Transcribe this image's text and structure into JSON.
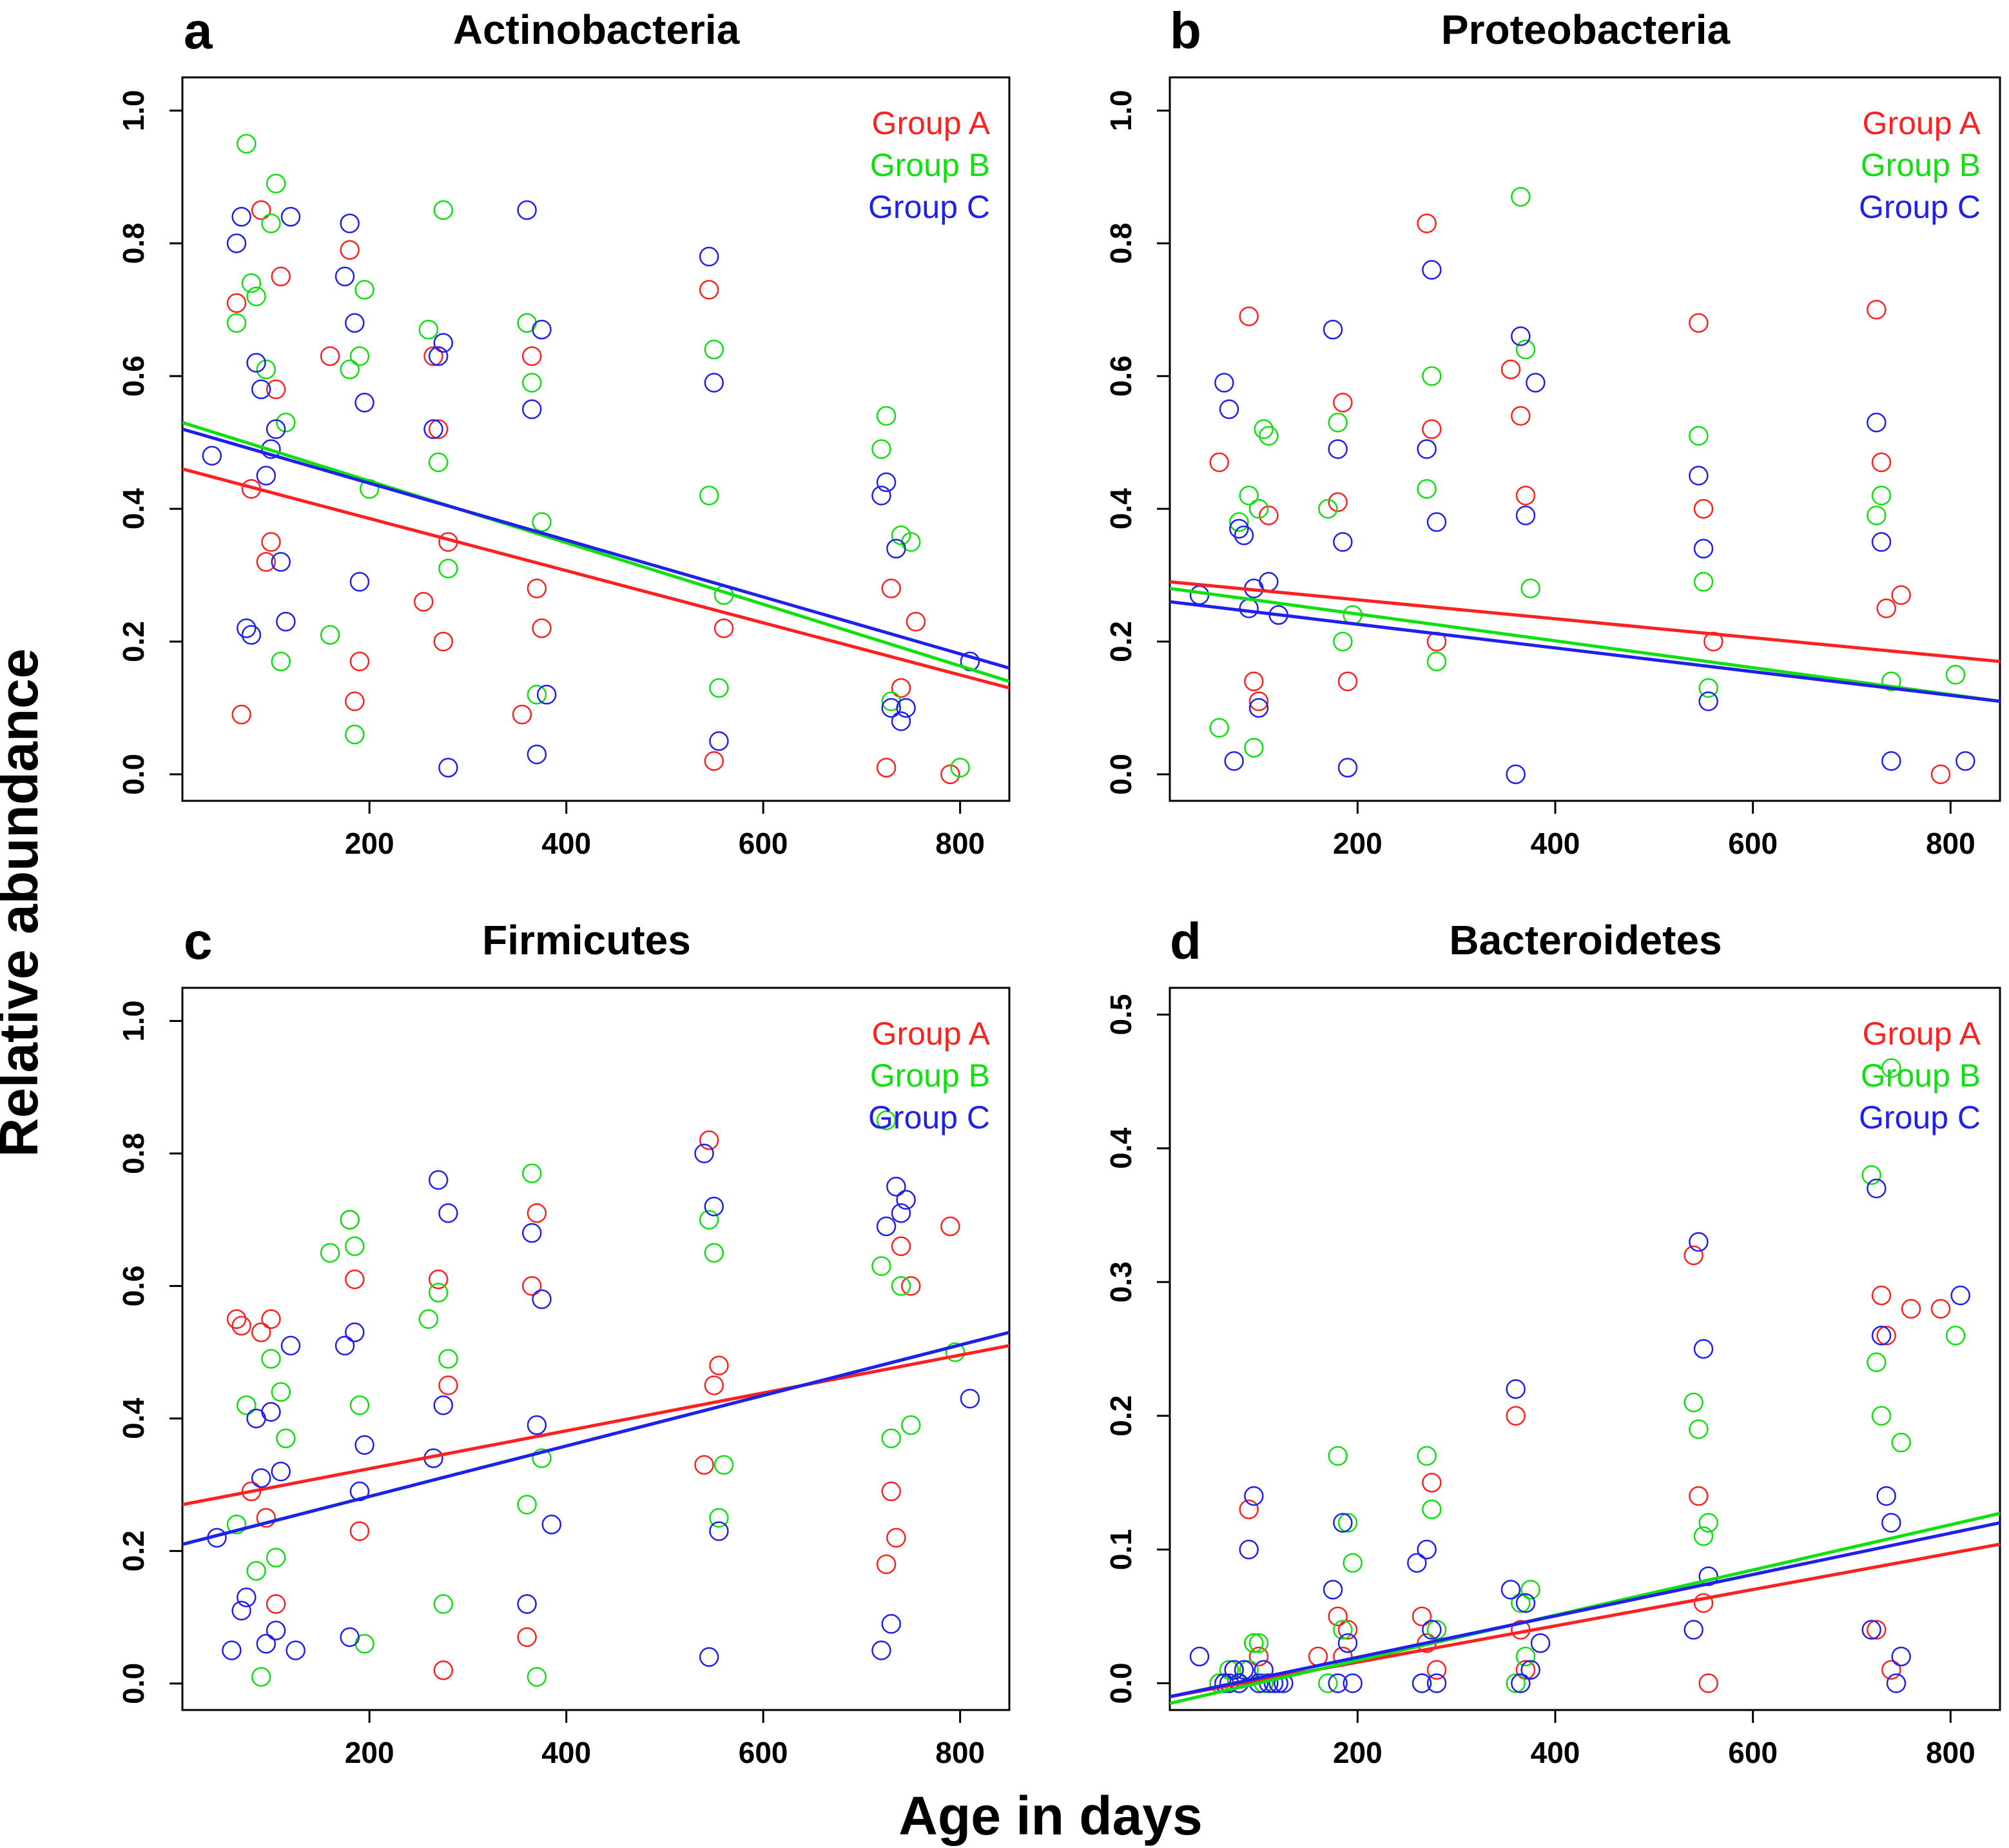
{
  "figure": {
    "ylabel": "Relative abundance",
    "xlabel": "Age in days"
  },
  "colors": {
    "group_a": "#ff2020",
    "group_b": "#10e010",
    "group_c": "#2020ee"
  },
  "chart_data": [
    {
      "type": "scatter",
      "panel": "a",
      "title": "Actinobacteria",
      "legend": [
        "Group A",
        "Group B",
        "Group C"
      ],
      "legend_position": "top-right",
      "xlim": [
        10,
        850
      ],
      "ylim": [
        -0.04,
        1.05
      ],
      "xticks": [
        200,
        400,
        600,
        800
      ],
      "yticks": [
        0.0,
        0.2,
        0.4,
        0.6,
        0.8,
        1.0
      ],
      "fits": [
        {
          "name": "Group A",
          "y_at_10": 0.46,
          "y_at_850": 0.13
        },
        {
          "name": "Group B",
          "y_at_10": 0.53,
          "y_at_850": 0.14
        },
        {
          "name": "Group C",
          "y_at_10": 0.52,
          "y_at_850": 0.16
        }
      ],
      "series": [
        {
          "name": "Group A",
          "x": [
            65,
            70,
            80,
            90,
            95,
            100,
            105,
            110,
            160,
            180,
            185,
            190,
            255,
            265,
            270,
            275,
            280,
            355,
            365,
            370,
            375,
            545,
            550,
            560,
            725,
            730,
            740,
            755,
            790
          ],
          "y": [
            0.71,
            0.09,
            0.43,
            0.85,
            0.32,
            0.35,
            0.58,
            0.75,
            0.63,
            0.79,
            0.11,
            0.17,
            0.26,
            0.63,
            0.52,
            0.2,
            0.35,
            0.09,
            0.63,
            0.28,
            0.22,
            0.73,
            0.02,
            0.22,
            0.01,
            0.28,
            0.13,
            0.23,
            0.0
          ]
        },
        {
          "name": "Group B",
          "x": [
            65,
            75,
            80,
            85,
            95,
            100,
            105,
            110,
            115,
            160,
            180,
            185,
            190,
            195,
            200,
            260,
            270,
            275,
            280,
            360,
            365,
            370,
            375,
            545,
            550,
            555,
            560,
            720,
            725,
            730,
            740,
            750,
            800
          ],
          "y": [
            0.68,
            0.95,
            0.74,
            0.72,
            0.61,
            0.83,
            0.89,
            0.17,
            0.53,
            0.21,
            0.61,
            0.06,
            0.63,
            0.73,
            0.43,
            0.67,
            0.47,
            0.85,
            0.31,
            0.68,
            0.59,
            0.12,
            0.38,
            0.42,
            0.64,
            0.13,
            0.27,
            0.49,
            0.54,
            0.11,
            0.36,
            0.35,
            0.01
          ]
        },
        {
          "name": "Group C",
          "x": [
            40,
            65,
            70,
            75,
            80,
            85,
            90,
            95,
            100,
            105,
            110,
            115,
            120,
            175,
            180,
            185,
            190,
            195,
            265,
            270,
            275,
            280,
            360,
            365,
            370,
            375,
            380,
            545,
            550,
            555,
            720,
            725,
            730,
            735,
            740,
            745,
            810
          ],
          "y": [
            0.48,
            0.8,
            0.84,
            0.22,
            0.21,
            0.62,
            0.58,
            0.45,
            0.49,
            0.52,
            0.32,
            0.23,
            0.84,
            0.75,
            0.83,
            0.68,
            0.29,
            0.56,
            0.52,
            0.63,
            0.65,
            0.01,
            0.85,
            0.55,
            0.03,
            0.67,
            0.12,
            0.78,
            0.59,
            0.05,
            0.42,
            0.44,
            0.1,
            0.34,
            0.08,
            0.1,
            0.17
          ]
        }
      ]
    },
    {
      "type": "scatter",
      "panel": "b",
      "title": "Proteobacteria",
      "legend": [
        "Group A",
        "Group B",
        "Group C"
      ],
      "legend_position": "top-right",
      "xlim": [
        10,
        850
      ],
      "ylim": [
        -0.04,
        1.05
      ],
      "xticks": [
        200,
        400,
        600,
        800
      ],
      "yticks": [
        0.0,
        0.2,
        0.4,
        0.6,
        0.8,
        1.0
      ],
      "fits": [
        {
          "name": "Group A",
          "y_at_10": 0.29,
          "y_at_850": 0.17
        },
        {
          "name": "Group B",
          "y_at_10": 0.28,
          "y_at_850": 0.11
        },
        {
          "name": "Group C",
          "y_at_10": 0.26,
          "y_at_850": 0.11
        }
      ],
      "series": [
        {
          "name": "Group A",
          "x": [
            60,
            90,
            95,
            100,
            110,
            180,
            185,
            190,
            270,
            275,
            280,
            355,
            365,
            370,
            545,
            550,
            560,
            725,
            730,
            735,
            750,
            790
          ],
          "y": [
            0.47,
            0.69,
            0.14,
            0.11,
            0.39,
            0.41,
            0.56,
            0.14,
            0.83,
            0.52,
            0.2,
            0.61,
            0.54,
            0.42,
            0.68,
            0.4,
            0.2,
            0.7,
            0.47,
            0.25,
            0.27,
            0.0
          ]
        },
        {
          "name": "Group B",
          "x": [
            60,
            80,
            90,
            95,
            100,
            105,
            110,
            170,
            180,
            185,
            195,
            270,
            275,
            280,
            365,
            370,
            375,
            545,
            550,
            555,
            725,
            730,
            740,
            805
          ],
          "y": [
            0.07,
            0.38,
            0.42,
            0.04,
            0.4,
            0.52,
            0.51,
            0.4,
            0.53,
            0.2,
            0.24,
            0.43,
            0.6,
            0.17,
            0.87,
            0.64,
            0.28,
            0.51,
            0.29,
            0.13,
            0.39,
            0.42,
            0.14,
            0.15
          ]
        },
        {
          "name": "Group C",
          "x": [
            40,
            65,
            70,
            75,
            80,
            85,
            90,
            95,
            100,
            110,
            120,
            175,
            180,
            185,
            190,
            270,
            275,
            280,
            360,
            365,
            370,
            380,
            545,
            550,
            555,
            725,
            730,
            740,
            815
          ],
          "y": [
            0.27,
            0.59,
            0.55,
            0.02,
            0.37,
            0.36,
            0.25,
            0.28,
            0.1,
            0.29,
            0.24,
            0.67,
            0.49,
            0.35,
            0.01,
            0.49,
            0.76,
            0.38,
            0.0,
            0.66,
            0.39,
            0.59,
            0.45,
            0.34,
            0.11,
            0.53,
            0.35,
            0.02,
            0.02
          ]
        }
      ]
    },
    {
      "type": "scatter",
      "panel": "c",
      "title": "Firmicutes",
      "legend": [
        "Group A",
        "Group B",
        "Group C"
      ],
      "legend_position": "top-right",
      "xlim": [
        10,
        850
      ],
      "ylim": [
        -0.04,
        1.05
      ],
      "xticks": [
        200,
        400,
        600,
        800
      ],
      "yticks": [
        0.0,
        0.2,
        0.4,
        0.6,
        0.8,
        1.0
      ],
      "fits": [
        {
          "name": "Group A",
          "y_at_10": 0.27,
          "y_at_850": 0.51
        },
        {
          "name": "Group B",
          "y_at_10": 0.21,
          "y_at_850": 0.53
        },
        {
          "name": "Group C",
          "y_at_10": 0.21,
          "y_at_850": 0.53
        }
      ],
      "series": [
        {
          "name": "Group A",
          "x": [
            65,
            70,
            80,
            90,
            95,
            100,
            105,
            180,
            185,
            190,
            270,
            275,
            280,
            360,
            365,
            370,
            540,
            545,
            550,
            555,
            725,
            730,
            735,
            740,
            750,
            790
          ],
          "y": [
            0.55,
            0.54,
            0.29,
            0.53,
            0.25,
            0.55,
            0.12,
            0.7,
            0.61,
            0.23,
            0.61,
            0.02,
            0.45,
            0.07,
            0.6,
            0.71,
            0.33,
            0.82,
            0.45,
            0.48,
            0.18,
            0.29,
            0.22,
            0.66,
            0.6,
            0.69
          ]
        },
        {
          "name": "Group B",
          "x": [
            65,
            75,
            85,
            90,
            100,
            105,
            110,
            115,
            160,
            180,
            185,
            190,
            195,
            260,
            270,
            275,
            280,
            360,
            365,
            370,
            375,
            545,
            550,
            555,
            560,
            720,
            725,
            730,
            740,
            750,
            795
          ],
          "y": [
            0.24,
            0.42,
            0.17,
            0.01,
            0.49,
            0.19,
            0.44,
            0.37,
            0.65,
            0.7,
            0.66,
            0.42,
            0.06,
            0.55,
            0.59,
            0.12,
            0.49,
            0.27,
            0.77,
            0.01,
            0.34,
            0.7,
            0.65,
            0.25,
            0.33,
            0.63,
            0.85,
            0.37,
            0.6,
            0.39,
            0.5
          ]
        },
        {
          "name": "Group C",
          "x": [
            45,
            60,
            70,
            75,
            85,
            90,
            95,
            100,
            105,
            110,
            120,
            125,
            175,
            180,
            185,
            190,
            195,
            265,
            270,
            275,
            280,
            360,
            365,
            370,
            375,
            385,
            540,
            545,
            550,
            555,
            720,
            725,
            730,
            735,
            740,
            745,
            810
          ],
          "y": [
            0.22,
            0.05,
            0.11,
            0.13,
            0.4,
            0.31,
            0.06,
            0.41,
            0.08,
            0.32,
            0.51,
            0.05,
            0.51,
            0.07,
            0.53,
            0.29,
            0.36,
            0.34,
            0.76,
            0.42,
            0.71,
            0.12,
            0.68,
            0.39,
            0.58,
            0.24,
            0.8,
            0.04,
            0.72,
            0.23,
            0.05,
            0.69,
            0.09,
            0.75,
            0.71,
            0.73,
            0.43
          ]
        }
      ]
    },
    {
      "type": "scatter",
      "panel": "d",
      "title": "Bacteroidetes",
      "legend": [
        "Group A",
        "Group B",
        "Group C"
      ],
      "legend_position": "top-right",
      "xlim": [
        10,
        850
      ],
      "ylim": [
        -0.02,
        0.52
      ],
      "xticks": [
        200,
        400,
        600,
        800
      ],
      "yticks": [
        0.0,
        0.1,
        0.2,
        0.3,
        0.4,
        0.5
      ],
      "fits": [
        {
          "name": "Group A",
          "y_at_10": -0.01,
          "y_at_850": 0.104
        },
        {
          "name": "Group B",
          "y_at_10": -0.015,
          "y_at_850": 0.127
        },
        {
          "name": "Group C",
          "y_at_10": -0.01,
          "y_at_850": 0.12
        }
      ],
      "series": [
        {
          "name": "Group A",
          "x": [
            60,
            75,
            90,
            95,
            100,
            105,
            160,
            180,
            185,
            190,
            265,
            270,
            275,
            280,
            360,
            365,
            370,
            540,
            545,
            550,
            555,
            725,
            730,
            735,
            740,
            760,
            790
          ],
          "y": [
            0.0,
            0.01,
            0.13,
            0.03,
            0.02,
            0.0,
            0.02,
            0.05,
            0.02,
            0.04,
            0.05,
            0.03,
            0.15,
            0.01,
            0.2,
            0.04,
            0.01,
            0.32,
            0.14,
            0.06,
            0.0,
            0.04,
            0.29,
            0.26,
            0.01,
            0.28,
            0.28
          ]
        },
        {
          "name": "Group B",
          "x": [
            60,
            70,
            80,
            90,
            95,
            100,
            105,
            170,
            180,
            185,
            190,
            195,
            265,
            270,
            275,
            280,
            360,
            365,
            370,
            375,
            540,
            545,
            550,
            555,
            720,
            725,
            730,
            740,
            750,
            805
          ],
          "y": [
            0.0,
            0.01,
            0.0,
            0.01,
            0.03,
            0.03,
            0.0,
            0.0,
            0.17,
            0.04,
            0.12,
            0.09,
            0.0,
            0.17,
            0.13,
            0.04,
            0.0,
            0.06,
            0.02,
            0.07,
            0.21,
            0.19,
            0.11,
            0.12,
            0.38,
            0.24,
            0.2,
            0.46,
            0.18,
            0.26
          ]
        },
        {
          "name": "Group C",
          "x": [
            40,
            65,
            70,
            75,
            80,
            85,
            90,
            95,
            100,
            105,
            110,
            115,
            120,
            125,
            175,
            180,
            185,
            190,
            195,
            260,
            265,
            270,
            275,
            280,
            355,
            360,
            365,
            370,
            375,
            385,
            540,
            545,
            550,
            555,
            720,
            725,
            730,
            735,
            740,
            745,
            750,
            810
          ],
          "y": [
            0.02,
            0.0,
            0.0,
            0.01,
            0.0,
            0.01,
            0.1,
            0.14,
            0.0,
            0.01,
            0.0,
            0.0,
            0.0,
            0.0,
            0.07,
            0.0,
            0.12,
            0.03,
            0.0,
            0.09,
            0.0,
            0.1,
            0.04,
            0.0,
            0.07,
            0.22,
            0.0,
            0.06,
            0.01,
            0.03,
            0.04,
            0.33,
            0.25,
            0.08,
            0.04,
            0.37,
            0.26,
            0.14,
            0.12,
            0.0,
            0.02,
            0.29
          ]
        }
      ]
    }
  ]
}
